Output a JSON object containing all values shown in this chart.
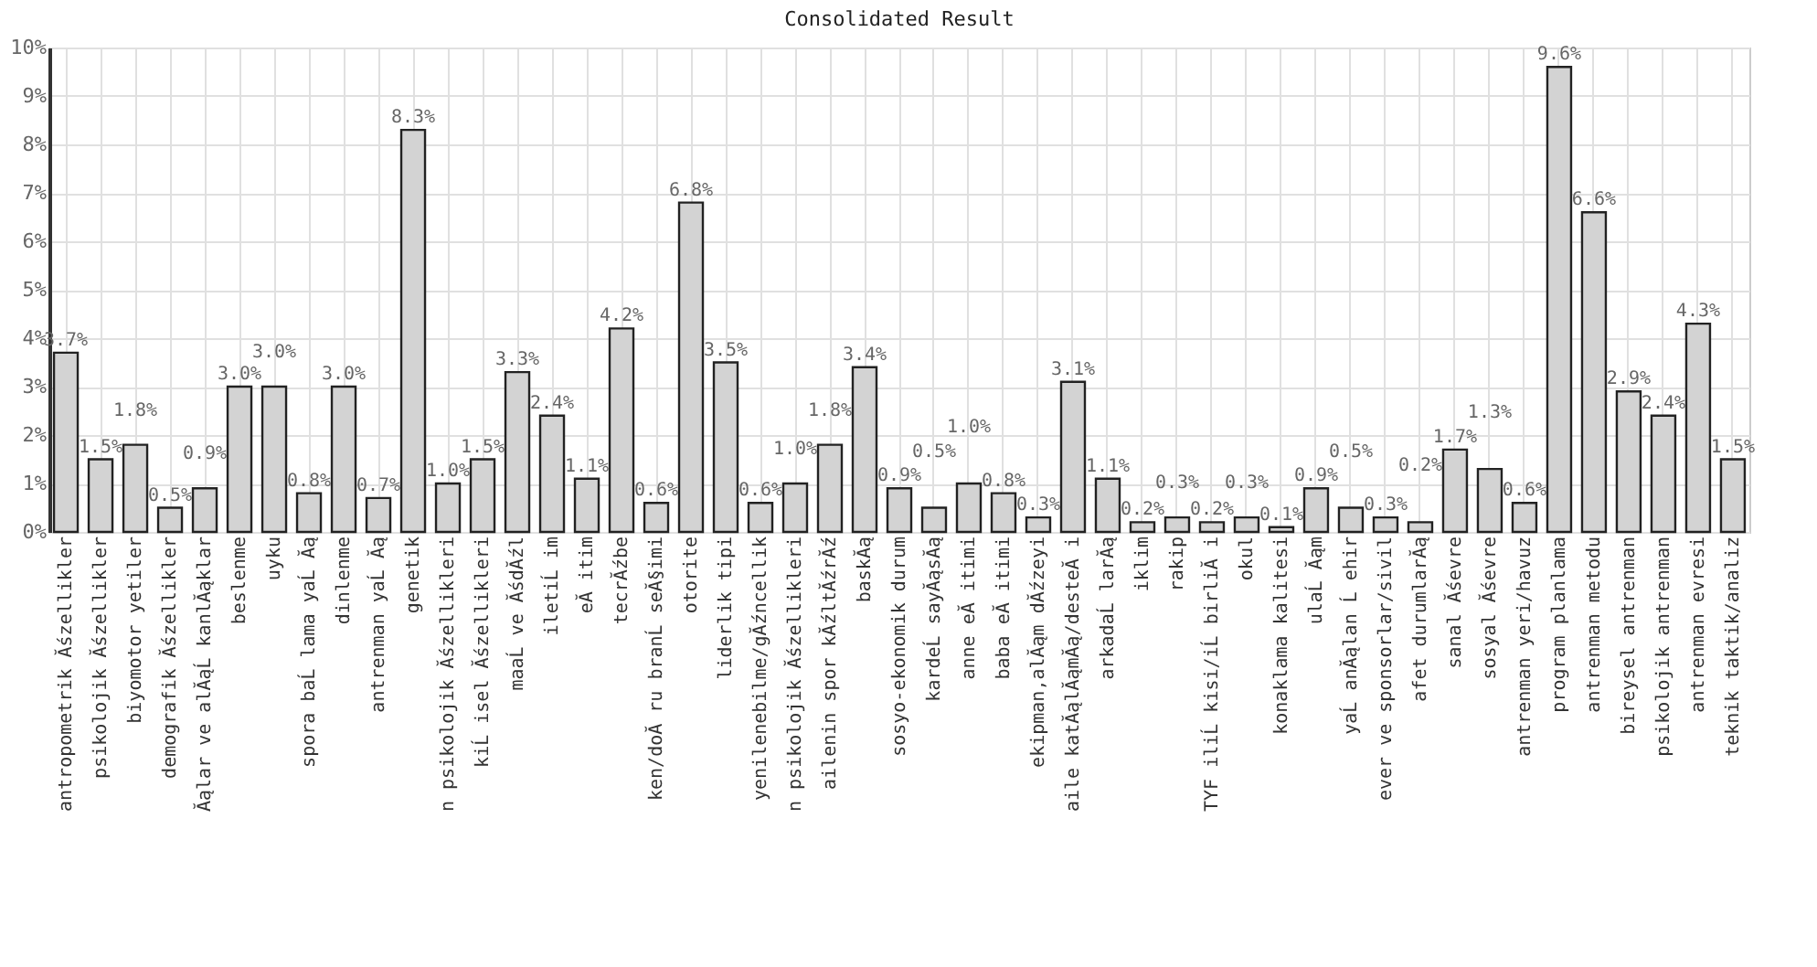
{
  "chart_data": {
    "type": "bar",
    "title": "Consolidated Result",
    "categories": [
      "antropometrik Ăśzellikler",
      "psikolojik Ăśzellikler",
      "biyomotor yetiler",
      "demografik Ăśzellikler",
      "Ăąlar ve alĂąĹ kanlĂąklar",
      "beslenme",
      "uyku",
      "spora baĹ lama yaĹ Ăą",
      "dinlenme",
      "antrenman yaĹ Ăą",
      "genetik",
      "n psikolojik Ăśzellikleri",
      "kiĹ isel Ăśzellikleri",
      "maaĹ ve ĂśdĂźl",
      "iletiĹ im",
      "eĂ itim",
      "tecrĂźbe",
      "ken/doĂ ru branĹ seĂ§imi",
      "otorite",
      "liderlik tipi",
      "yenilenebilme/gĂźncellik",
      "n psikolojik Ăśzellikleri",
      "ailenin spor kĂźltĂźrĂź",
      "baskĂą",
      "sosyo-ekonomik durum",
      "kardeĹ sayĂąsĂą",
      "anne eĂ itimi",
      "baba eĂ itimi",
      "ekipman,alĂąm dĂźzeyi",
      "aile katĂąlĂąmĂą/desteĂ i",
      "arkadaĹ larĂą",
      "iklim",
      "rakip",
      "TYF iliĹ kisi/iĹ birliĂ i",
      "okul",
      "konaklama kalitesi",
      "ulaĹ Ăąm",
      "yaĹ anĂąlan Ĺ ehir",
      "ever ve sponsorlar/sivil",
      "afet durumlarĂą",
      "sanal Ăśevre",
      "sosyal Ăśevre",
      "antrenman yeri/havuz",
      "program planlama",
      "antrenman metodu",
      "bireysel antrenman",
      "psikolojik antrenman",
      "antrenman evresi",
      "teknik taktik/analiz"
    ],
    "values": [
      3.7,
      1.5,
      1.8,
      0.5,
      0.9,
      3.0,
      3.0,
      0.8,
      3.0,
      0.7,
      8.3,
      1.0,
      1.5,
      3.3,
      2.4,
      1.1,
      4.2,
      0.6,
      6.8,
      3.5,
      0.6,
      1.0,
      1.8,
      3.4,
      0.9,
      0.5,
      1.0,
      0.8,
      0.3,
      3.1,
      1.1,
      0.2,
      0.3,
      0.2,
      0.3,
      0.1,
      0.9,
      0.5,
      0.3,
      0.2,
      1.7,
      1.3,
      0.6,
      9.6,
      6.6,
      2.9,
      2.4,
      4.3,
      1.5
    ],
    "value_labels": [
      "3.7%",
      "1.5%",
      "1.8%",
      "0.5%",
      "0.9%",
      "3.0%",
      "3.0%",
      "0.8%",
      "3.0%",
      "0.7%",
      "8.3%",
      "1.0%",
      "1.5%",
      "3.3%",
      "2.4%",
      "1.1%",
      "4.2%",
      "0.6%",
      "6.8%",
      "3.5%",
      "0.6%",
      "1.0%",
      "1.8%",
      "3.4%",
      "0.9%",
      "0.5%",
      "1.0%",
      "0.8%",
      "0.3%",
      "3.1%",
      "1.1%",
      "0.2%",
      "0.3%",
      "0.2%",
      "0.3%",
      "0.1%",
      "0.9%",
      "0.5%",
      "0.3%",
      "0.2%",
      "1.7%",
      "1.3%",
      "0.6%",
      "9.6%",
      "6.6%",
      "2.9%",
      "2.4%",
      "4.3%",
      "1.5%"
    ],
    "color": "#d3d3d3",
    "ylim": [
      0,
      10
    ],
    "yticks": [
      {
        "value": 0,
        "label": "0%"
      },
      {
        "value": 1,
        "label": "1%"
      },
      {
        "value": 2,
        "label": "2%"
      },
      {
        "value": 3,
        "label": "3%"
      },
      {
        "value": 4,
        "label": "4%"
      },
      {
        "value": 5,
        "label": "5%"
      },
      {
        "value": 6,
        "label": "6%"
      },
      {
        "value": 7,
        "label": "7%"
      },
      {
        "value": 8,
        "label": "8%"
      },
      {
        "value": 9,
        "label": "9%"
      },
      {
        "value": 10,
        "label": "10%"
      }
    ],
    "grid": true
  }
}
